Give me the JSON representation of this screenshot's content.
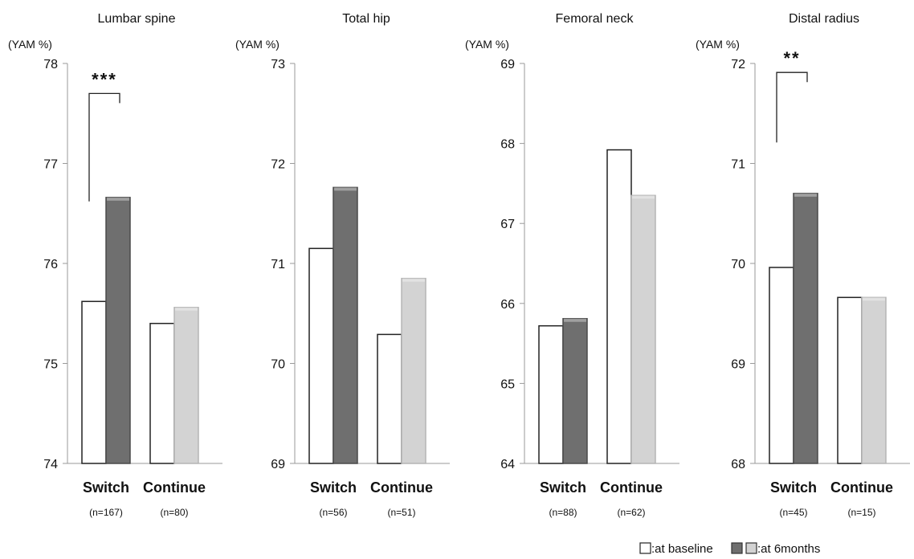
{
  "chart_data": [
    {
      "type": "bar",
      "title": "Lumbar spine",
      "ylabel": "(YAM %)",
      "ylim": [
        74,
        78
      ],
      "yticks": [
        "74",
        "75",
        "76",
        "77",
        "78"
      ],
      "categories": [
        "Switch",
        "Continue"
      ],
      "n_labels": [
        "(n=167)",
        "(n=80)"
      ],
      "series": [
        {
          "name": ":at baseline",
          "values": [
            75.62,
            75.4
          ]
        },
        {
          "name": ":at 6months",
          "values": [
            76.66,
            75.56
          ]
        }
      ],
      "significance": {
        "label": "***",
        "category_index": 0,
        "from": 76.62,
        "to": 77.7
      }
    },
    {
      "type": "bar",
      "title": "Total hip",
      "ylabel": "(YAM %)",
      "ylim": [
        69,
        73
      ],
      "yticks": [
        "69",
        "70",
        "71",
        "72",
        "73"
      ],
      "categories": [
        "Switch",
        "Continue"
      ],
      "n_labels": [
        "(n=56)",
        "(n=51)"
      ],
      "series": [
        {
          "name": ":at baseline",
          "values": [
            71.15,
            70.29
          ]
        },
        {
          "name": ":at 6months",
          "values": [
            71.76,
            70.85
          ]
        }
      ],
      "significance": null
    },
    {
      "type": "bar",
      "title": "Femoral neck",
      "ylabel": "(YAM %)",
      "ylim": [
        64,
        69
      ],
      "yticks": [
        "64",
        "65",
        "66",
        "67",
        "68",
        "69"
      ],
      "categories": [
        "Switch",
        "Continue"
      ],
      "n_labels": [
        "(n=88)",
        "(n=62)"
      ],
      "series": [
        {
          "name": ":at baseline",
          "values": [
            65.72,
            67.92
          ]
        },
        {
          "name": ":at 6months",
          "values": [
            65.81,
            67.35
          ]
        }
      ],
      "significance": null
    },
    {
      "type": "bar",
      "title": "Distal radius",
      "ylabel": "(YAM %)",
      "ylim": [
        68,
        72
      ],
      "yticks": [
        "68",
        "69",
        "70",
        "71",
        "72"
      ],
      "categories": [
        "Switch",
        "Continue"
      ],
      "n_labels": [
        "(n=45)",
        "(n=15)"
      ],
      "series": [
        {
          "name": ":at baseline",
          "values": [
            69.96,
            69.66
          ]
        },
        {
          "name": ":at 6months",
          "values": [
            70.7,
            69.66
          ]
        }
      ],
      "significance": {
        "label": "**",
        "category_index": 0,
        "from": 71.21,
        "to": 71.91
      }
    }
  ],
  "legend": {
    "baseline_label": ":at baseline",
    "six_month_label": ":at 6months"
  },
  "colors": {
    "baseline_fill": "#ffffff",
    "switch_6m_fill": "#6f6f6f",
    "continue_6m_fill": "#d3d3d3",
    "axis": "#9a9a9a",
    "bar_stroke": "#222222"
  }
}
